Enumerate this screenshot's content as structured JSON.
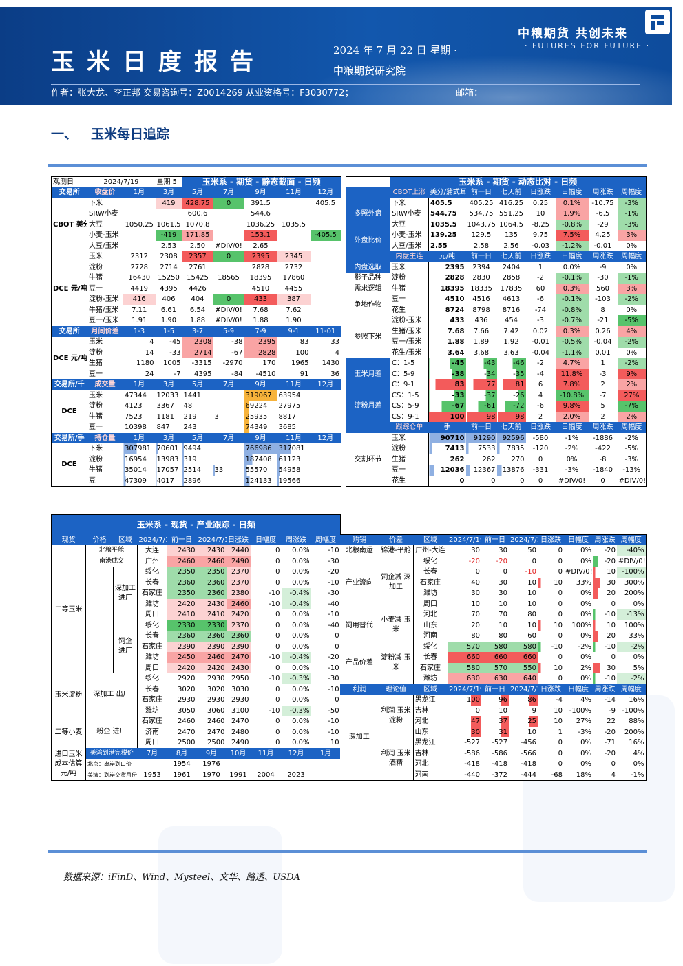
{
  "header": {
    "title": "玉米日度报告",
    "date": "2024 年 7 月 22 日 星期 ·",
    "org": "中粮期货研究院",
    "brand": "中粮期货 共创未来",
    "slogan": "· FUTURES FOR FUTURE ·",
    "authors": "作者：张大龙、李正邦 交易咨询号：Z0014269 从业资格号：F3030772；",
    "mail": "邮箱："
  },
  "section": {
    "num": "一、",
    "title": "玉米每日追踪"
  },
  "footnote": "数据来源：iFinD、Wind、Mysteel、文华、路透、USDA",
  "t1": {
    "title": "玉米系 - 期货 - 静态截面 - 日频",
    "obs_label": "观测日",
    "obs_date": "2024/7/19",
    "obs_week": "星期 5",
    "months": [
      "1月",
      "3月",
      "5月",
      "7月",
      "9月",
      "11月",
      "12月"
    ],
    "h1": {
      "a": "交易所",
      "b": "收盘价"
    },
    "cbot_grp": "CBOT 美分/ 蒲式耳",
    "cbot": [
      [
        "下米",
        "",
        "419",
        "428.75",
        "0",
        "391.5",
        "",
        "405.5"
      ],
      [
        "SRW小麦",
        "",
        "",
        "600.6",
        "",
        "544.6",
        "",
        ""
      ],
      [
        "大豆",
        "1050.25",
        "1061.5",
        "1070.8",
        "",
        "1036.25",
        "1035.5",
        ""
      ],
      [
        "小麦-玉米",
        "",
        "-419",
        "171.85",
        "",
        "153.1",
        "",
        "-405.5"
      ],
      [
        "大豆/玉米",
        "",
        "2.53",
        "2.50",
        "#DIV/0!",
        "2.65",
        "",
        ""
      ]
    ],
    "dce_grp": "DCE 元/吨",
    "dce": [
      [
        "玉米",
        "2312",
        "2308",
        "2357",
        "0",
        "2395",
        "2345",
        ""
      ],
      [
        "淀粉",
        "2728",
        "2714",
        "2761",
        "",
        "2828",
        "2732",
        ""
      ],
      [
        "牛猪",
        "16430",
        "15250",
        "15425",
        "18565",
        "18395",
        "17860",
        ""
      ],
      [
        "豆一",
        "4419",
        "4395",
        "4426",
        "",
        "4510",
        "4455",
        ""
      ],
      [
        "淀粉-玉米",
        "416",
        "406",
        "404",
        "0",
        "433",
        "387",
        ""
      ],
      [
        "牛猪/玉米",
        "7.11",
        "6.61",
        "6.54",
        "#DIV/0!",
        "7.68",
        "7.62",
        ""
      ],
      [
        "豆一/玉米",
        "1.91",
        "1.90",
        "1.88",
        "#DIV/0!",
        "1.88",
        "1.90",
        ""
      ]
    ],
    "h2": {
      "a": "交易所",
      "b": "月间价差",
      "c": [
        "1-3",
        "1-5",
        "3-7",
        "5-9",
        "7-9",
        "9-1",
        "11-01"
      ]
    },
    "spread": [
      [
        "玉米",
        "4",
        "-45",
        "2308",
        "-38",
        "2395",
        "83",
        "33"
      ],
      [
        "淀粉",
        "14",
        "-33",
        "2714",
        "-67",
        "2828",
        "100",
        "4"
      ],
      [
        "生猪",
        "1180",
        "1005",
        "-3315",
        "-2970",
        "170",
        "1965",
        "1430"
      ],
      [
        "豆一",
        "24",
        "-7",
        "4395",
        "-84",
        "-4510",
        "91",
        "36"
      ]
    ],
    "h3": {
      "a": "交易所/千",
      "b": "成交量"
    },
    "vol_grp": "DCE",
    "vol": [
      [
        "玉米",
        "47344",
        "12033",
        "1441",
        "",
        "319067",
        "63954",
        ""
      ],
      [
        "淀粉",
        "4123",
        "3367",
        "48",
        "",
        "69224",
        "27975",
        ""
      ],
      [
        "牛猪",
        "7523",
        "1181",
        "219",
        "3",
        "25935",
        "8817",
        ""
      ],
      [
        "豆一",
        "10398",
        "847",
        "243",
        "",
        "74349",
        "3685",
        ""
      ]
    ],
    "h4": {
      "a": "交易所/手",
      "b": "持仓量"
    },
    "oi": [
      [
        "下米",
        "307981",
        "70601",
        "9494",
        "",
        "766986",
        "317081",
        ""
      ],
      [
        "淀粉",
        "16954",
        "13983",
        "319",
        "",
        "187408",
        "61123",
        ""
      ],
      [
        "牛猪",
        "35014",
        "17057",
        "2514",
        "33",
        "55570",
        "54958",
        ""
      ],
      [
        "豆",
        "47309",
        "4017",
        "2896",
        "",
        "124133",
        "19566",
        ""
      ]
    ]
  },
  "t2": {
    "title": "玉米系 - 期货 - 动态比对 - 日频",
    "head": [
      "CBOT上涨",
      "美分/蒲式耳",
      "前一日",
      "七天前",
      "日涨跌",
      "日幅度",
      "周涨跌",
      "周幅度"
    ],
    "groups": [
      {
        "name": "多照外盘",
        "rows": [
          [
            "下米",
            "405.5",
            "405.25",
            "416.25",
            "0.25",
            "0.1%",
            "-10.75",
            "-3%"
          ],
          [
            "SRW小麦",
            "544.75",
            "534.75",
            "551.25",
            "10",
            "1.9%",
            "-6.5",
            "-1%"
          ],
          [
            "大豆",
            "1035.5",
            "1043.75",
            "1064.5",
            "-8.25",
            "-0.8%",
            "-29",
            "-3%"
          ]
        ]
      },
      {
        "name": "外盘比价",
        "rows": [
          [
            "小麦-玉米",
            "139.25",
            "129.5",
            "135",
            "9.75",
            "7.5%",
            "4.25",
            "3%"
          ],
          [
            "大豆/玉米",
            "2.55",
            "2.58",
            "2.56",
            "-0.03",
            "-1.2%",
            "-0.01",
            "0%"
          ]
        ]
      }
    ],
    "head2": [
      "内盘主连",
      "元/吨",
      "前一日",
      "七天前",
      "日涨跌",
      "日幅度",
      "周涨跌",
      "周幅度"
    ],
    "g2": [
      {
        "name": "内盘选取",
        "rows": [
          [
            "玉米",
            "2395",
            "2394",
            "2404",
            "1",
            "0.0%",
            "-9",
            "0%"
          ]
        ]
      },
      {
        "name": "影子品种",
        "rows": [
          [
            "淀粉",
            "2828",
            "2830",
            "2858",
            "-2",
            "-0.1%",
            "-30",
            "-1%"
          ]
        ]
      },
      {
        "name": "需求逻辑",
        "rows": [
          [
            "牛猪",
            "18395",
            "18335",
            "17835",
            "60",
            "0.3%",
            "560",
            "3%"
          ]
        ]
      },
      {
        "name": "争地作物",
        "rows": [
          [
            "豆一",
            "4510",
            "4516",
            "4613",
            "-6",
            "-0.1%",
            "-103",
            "-2%"
          ],
          [
            "花生",
            "8724",
            "8798",
            "8716",
            "-74",
            "-0.8%",
            "8",
            "0%"
          ]
        ]
      },
      {
        "name": "参照下米",
        "rows": [
          [
            "淀粉-玉米",
            "433",
            "436",
            "454",
            "-3",
            "-0.7%",
            "-21",
            "-5%"
          ],
          [
            "生猪/玉米",
            "7.68",
            "7.66",
            "7.42",
            "0.02",
            "0.3%",
            "0.26",
            "4%"
          ],
          [
            "豆一/玉米",
            "1.88",
            "1.89",
            "1.92",
            "-0.01",
            "-0.5%",
            "-0.04",
            "-2%"
          ],
          [
            "花生/玉米",
            "3.64",
            "3.68",
            "3.63",
            "-0.04",
            "-1.1%",
            "0.01",
            "0%"
          ]
        ]
      },
      {
        "name": "玉米月差",
        "rows": [
          [
            "C：1-5",
            "-45",
            "-43",
            "-46",
            "-2",
            "4.7%",
            "1",
            "-2%"
          ],
          [
            "C：5-9",
            "-38",
            "-34",
            "-35",
            "-4",
            "11.8%",
            "-3",
            "9%"
          ],
          [
            "C：9-1",
            "83",
            "77",
            "81",
            "6",
            "7.8%",
            "2",
            "2%"
          ]
        ]
      },
      {
        "name": "淀粉月差",
        "rows": [
          [
            "CS：1-5",
            "-33",
            "-37",
            "-26",
            "4",
            "-10.8%",
            "-7",
            "27%"
          ],
          [
            "CS：5-9",
            "-67",
            "-61",
            "-72",
            "-6",
            "9.8%",
            "5",
            "-7%"
          ],
          [
            "CS：9-1",
            "100",
            "98",
            "98",
            "2",
            "2.0%",
            "2",
            "2%"
          ]
        ]
      }
    ],
    "head3": [
      "跟踪仓单",
      "手",
      "前一日",
      "七天前",
      "日涨跌",
      "日幅度",
      "周涨跌",
      "周幅度"
    ],
    "g3": {
      "name": "交割环节",
      "rows": [
        [
          "玉米",
          "90710",
          "91290",
          "92596",
          "-580",
          "-1%",
          "-1886",
          "-2%"
        ],
        [
          "淀粉",
          "7413",
          "7533",
          "7835",
          "-120",
          "-2%",
          "-422",
          "-5%"
        ],
        [
          "生猪",
          "262",
          "262",
          "270",
          "0",
          "0%",
          "-8",
          "-3%"
        ],
        [
          "豆一",
          "12036",
          "12367",
          "13876",
          "-331",
          "-3%",
          "-1840",
          "-13%"
        ],
        [
          "花生",
          "0",
          "0",
          "0",
          "0",
          "#DIV/0!",
          "0",
          "#DIV/0!"
        ]
      ]
    }
  },
  "t3": {
    "title": "玉米系 - 现货 - 产业跟踪 - 日频",
    "head": [
      "现货",
      "价格",
      "区域",
      "2024/7/19",
      "前一日",
      "2024/7/10",
      "日涨跌",
      "日幅度",
      "周涨跌",
      "周幅度"
    ],
    "g_main": "二等玉米",
    "rows_a": [
      [
        "北粮平舱",
        "大连",
        "2430",
        "2430",
        "2440",
        "0",
        "0.0%",
        "-10",
        "-0.4%"
      ],
      [
        "南港成交",
        "广州",
        "2460",
        "2460",
        "2490",
        "0",
        "0.0%",
        "-30",
        "-1.2%"
      ]
    ],
    "sub1": "深加工 进厂",
    "rows_b": [
      [
        "绥化",
        "2350",
        "2350",
        "2370",
        "0",
        "0.0%",
        "-20",
        "-0.8%"
      ],
      [
        "长春",
        "2360",
        "2360",
        "2370",
        "0",
        "0.0%",
        "-10",
        "-0.4%"
      ],
      [
        "石家庄",
        "2350",
        "2360",
        "2380",
        "-10",
        "-0.4%",
        "-30",
        "-1.3%"
      ],
      [
        "潍坊",
        "2420",
        "2430",
        "2460",
        "-10",
        "-0.4%",
        "-40",
        "-1.6%"
      ],
      [
        "周口",
        "2410",
        "2410",
        "2420",
        "0",
        "0.0%",
        "-10",
        "-0.4%"
      ]
    ],
    "sub2": "饲企 进厂",
    "rows_c": [
      [
        "绥化",
        "2330",
        "2330",
        "2370",
        "0",
        "0.0%",
        "-40",
        "-1.7%"
      ],
      [
        "长春",
        "2360",
        "2360",
        "2360",
        "0",
        "0.0%",
        "0",
        "0.0%"
      ],
      [
        "石家庄",
        "2390",
        "2390",
        "2390",
        "0",
        "0.0%",
        "0",
        "0.0%"
      ],
      [
        "潍坊",
        "2450",
        "2460",
        "2470",
        "-10",
        "-0.4%",
        "-20",
        "-0.8%"
      ],
      [
        "周口",
        "2420",
        "2420",
        "2430",
        "0",
        "0.0%",
        "-10",
        "-0.4%"
      ]
    ],
    "g_starch": "玉米淀粉",
    "sub3": "深加工 出厂",
    "rows_d": [
      [
        "绥化",
        "2920",
        "2930",
        "2950",
        "-10",
        "-0.3%",
        "-30",
        "-1.0%"
      ],
      [
        "长春",
        "3020",
        "3020",
        "3030",
        "0",
        "0.0%",
        "-10",
        "-0.3%"
      ],
      [
        "石家庄",
        "2930",
        "2930",
        "2930",
        "0",
        "0.0%",
        "0",
        "0.0%"
      ],
      [
        "潍坊",
        "3050",
        "3060",
        "3100",
        "-10",
        "-0.3%",
        "-50",
        "-1.6%"
      ]
    ],
    "g_wheat": "二等小麦",
    "sub4": "粉企 进厂",
    "rows_e": [
      [
        "石家庄",
        "2460",
        "2460",
        "2470",
        "0",
        "0.0%",
        "-10",
        "-0.4%"
      ],
      [
        "济南",
        "2470",
        "2470",
        "2480",
        "0",
        "0.0%",
        "-10",
        "-0.4%"
      ],
      [
        "周口",
        "2500",
        "2500",
        "2490",
        "0",
        "0.0%",
        "10",
        "0.4%"
      ]
    ],
    "g_import": "进口玉米 成本估算 元/吨",
    "imp_head": [
      "美湾到港完税价",
      "7月",
      "8月",
      "9月",
      "10月",
      "11月",
      "12月",
      "1月"
    ],
    "imp_rows": [
      [
        "北京：离岸到口价",
        "",
        "1954",
        "1976",
        "",
        "",
        "",
        ""
      ],
      [
        "美湾：到岸交货月份",
        "1953",
        "1961",
        "1970",
        "1991",
        "2004",
        "2023",
        ""
      ]
    ]
  },
  "t4": {
    "head": [
      "购销",
      "价差",
      "区域",
      "2024/7/19",
      "前一日",
      "2024/7/10",
      "日涨跌",
      "日幅度",
      "周涨跌",
      "周幅度"
    ],
    "r1": {
      "a": "北粮南运",
      "b": "锦港-平舱",
      "c": "广州-大连",
      "v": [
        "30",
        "30",
        "50",
        "0",
        "0%",
        "-20",
        "-40%"
      ]
    },
    "g_chain": "产业流向",
    "sub_chain": "饲企减 深加工",
    "chain": [
      [
        "绥化",
        "-20",
        "-20",
        "0",
        "0",
        "0%",
        "-20",
        "#DIV/0!"
      ],
      [
        "长春",
        "0",
        "0",
        "-10",
        "0",
        "#DIV/0!",
        "10",
        "-100%"
      ],
      [
        "石家庄",
        "40",
        "30",
        "10",
        "10",
        "33%",
        "30",
        "300%"
      ],
      [
        "潍坊",
        "30",
        "30",
        "10",
        "0",
        "0%",
        "20",
        "200%"
      ],
      [
        "周口",
        "10",
        "10",
        "10",
        "0",
        "0%",
        "0",
        "0%"
      ]
    ],
    "g_sub": "饲用替代",
    "sub_sub": "小麦减 玉米",
    "subs": [
      [
        "河北",
        "70",
        "70",
        "80",
        "0",
        "0%",
        "-10",
        "-13%"
      ],
      [
        "山东",
        "20",
        "10",
        "10",
        "10",
        "100%",
        "10",
        "100%"
      ],
      [
        "河南",
        "80",
        "80",
        "60",
        "0",
        "0%",
        "20",
        "33%"
      ]
    ],
    "g_prod": "产品价差",
    "sub_prod": "淀粉减 玉米",
    "prod": [
      [
        "绥化",
        "570",
        "580",
        "580",
        "-10",
        "-2%",
        "-10",
        "-2%"
      ],
      [
        "长春",
        "660",
        "660",
        "660",
        "0",
        "0%",
        "0",
        "0%"
      ],
      [
        "石家庄",
        "580",
        "570",
        "550",
        "10",
        "2%",
        "30",
        "5%"
      ],
      [
        "潍坊",
        "630",
        "630",
        "640",
        "0",
        "0%",
        "-10",
        "-2%"
      ]
    ],
    "head2": [
      "利润",
      "理论值",
      "区域",
      "2024/7/19",
      "前一日",
      "2024/7/10",
      "日涨跌",
      "日幅度",
      "周涨跌",
      "周幅度"
    ],
    "g_profit": "深加工",
    "sub_p1": "利润 玉米淀粉",
    "sub_p2": "利润 玉米酒精",
    "p1": [
      [
        "黑龙江",
        "100",
        "96",
        "86",
        "-4",
        "4%",
        "-14",
        "16%"
      ],
      [
        "吉林",
        "0",
        "10",
        "9",
        "10",
        "-100%",
        "-9",
        "-100%"
      ],
      [
        "河北",
        "47",
        "37",
        "25",
        "10",
        "27%",
        "22",
        "88%"
      ],
      [
        "山东",
        "30",
        "31",
        "10",
        "1",
        "-3%",
        "-20",
        "200%"
      ]
    ],
    "p2": [
      [
        "黑龙江",
        "-527",
        "-527",
        "-456",
        "0",
        "0%",
        "-71",
        "16%"
      ],
      [
        "吉林",
        "-586",
        "-586",
        "-566",
        "0",
        "0%",
        "-20",
        "4%"
      ],
      [
        "河北",
        "-418",
        "-418",
        "-418",
        "0",
        "0%",
        "0",
        "0%"
      ],
      [
        "河南",
        "-440",
        "-372",
        "-444",
        "-68",
        "18%",
        "4",
        "-1%"
      ]
    ]
  }
}
